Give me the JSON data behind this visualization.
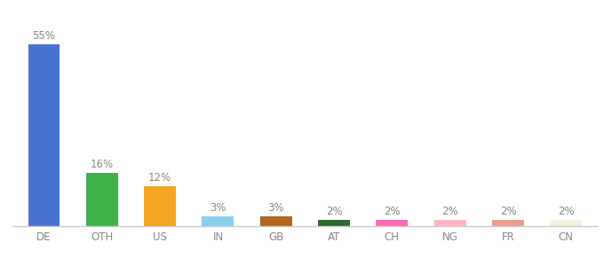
{
  "categories": [
    "DE",
    "OTH",
    "US",
    "IN",
    "GB",
    "AT",
    "CH",
    "NG",
    "FR",
    "CN"
  ],
  "values": [
    55,
    16,
    12,
    3,
    3,
    2,
    2,
    2,
    2,
    2
  ],
  "bar_colors": [
    "#4a72d1",
    "#3db34a",
    "#f5a623",
    "#87ceeb",
    "#b5651d",
    "#2d6a2d",
    "#ff69b4",
    "#ffb6c1",
    "#e8a090",
    "#f5f0dc"
  ],
  "ylim": [
    0,
    62
  ],
  "background_color": "#ffffff",
  "label_fontsize": 8.5,
  "value_fontsize": 8.5,
  "bar_width": 0.55
}
